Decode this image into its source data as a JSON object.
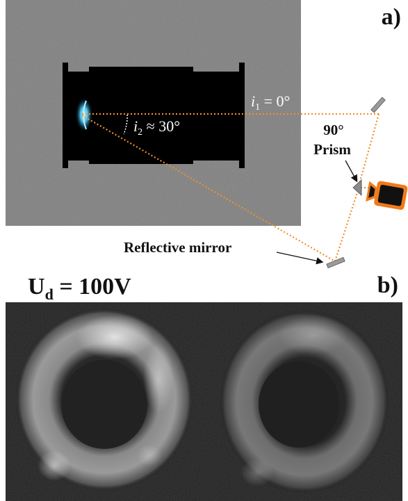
{
  "panel_a": {
    "label": "a)",
    "angle1": {
      "var": "i",
      "sub": "1",
      "rel": " = 0°"
    },
    "angle2": {
      "var": "i",
      "sub": "2",
      "rel": " ≈ 30°"
    },
    "prism_line1": "90°",
    "prism_line2": "Prism",
    "mirror_label": "Reflective mirror"
  },
  "panel_b": {
    "label": "b)",
    "voltage": {
      "base": "U",
      "sub": "d",
      "rest": " = 100V"
    }
  },
  "colors": {
    "beam": "#f0902a",
    "camera": "#f07a1a",
    "plasma": "#4fd2ff",
    "background_gray": "#808080"
  }
}
